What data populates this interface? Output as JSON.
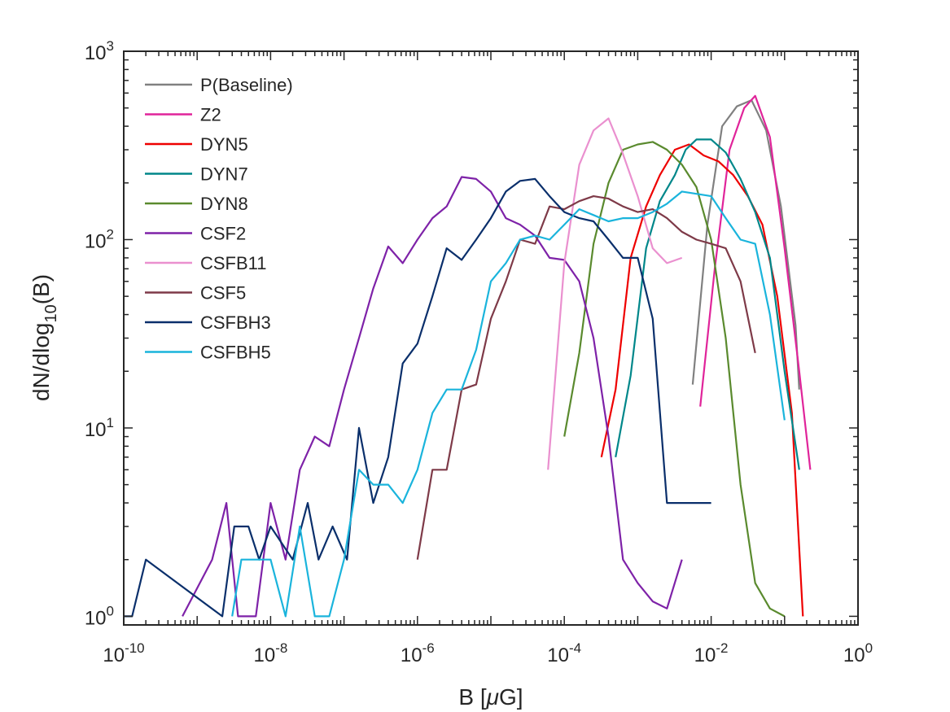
{
  "chart_data": {
    "type": "line",
    "xscale": "log",
    "yscale": "log",
    "xlim": [
      1e-10,
      1
    ],
    "ylim": [
      0.9,
      1000
    ],
    "grid": false,
    "legend_position": "top-left",
    "xlabel_parts": [
      "B [",
      "μ",
      "G]"
    ],
    "ylabel_parts": [
      "dN/dlog",
      "10",
      "(B)"
    ],
    "x_ticks": [
      {
        "value": 1e-10,
        "base": "10",
        "exp": "-10"
      },
      {
        "value": 1e-08,
        "base": "10",
        "exp": "-8"
      },
      {
        "value": 1e-06,
        "base": "10",
        "exp": "-6"
      },
      {
        "value": 0.0001,
        "base": "10",
        "exp": "-4"
      },
      {
        "value": 0.01,
        "base": "10",
        "exp": "-2"
      },
      {
        "value": 1,
        "base": "10",
        "exp": "0"
      }
    ],
    "y_ticks": [
      {
        "value": 1,
        "base": "10",
        "exp": "0"
      },
      {
        "value": 10,
        "base": "10",
        "exp": "1"
      },
      {
        "value": 100,
        "base": "10",
        "exp": "2"
      },
      {
        "value": 1000,
        "base": "10",
        "exp": "3"
      }
    ],
    "series": [
      {
        "name": "P(Baseline)",
        "color": "#808080",
        "x": [
          0.0056,
          0.0089,
          0.0141,
          0.0224,
          0.0355,
          0.0562,
          0.0891,
          0.1413,
          0.1585
        ],
        "y": [
          17,
          120,
          400,
          510,
          550,
          380,
          150,
          35,
          16
        ]
      },
      {
        "name": "Z2",
        "color": "#e0249a",
        "x": [
          0.0071,
          0.0112,
          0.0178,
          0.0282,
          0.0398,
          0.0631,
          0.1,
          0.1585,
          0.2239
        ],
        "y": [
          13,
          70,
          300,
          500,
          580,
          350,
          90,
          20,
          6
        ]
      },
      {
        "name": "DYN5",
        "color": "#ee0000",
        "x": [
          0.00032,
          0.0005,
          0.0008,
          0.0013,
          0.002,
          0.0032,
          0.005,
          0.0079,
          0.0126,
          0.02,
          0.0316,
          0.05,
          0.0794,
          0.1259,
          0.1778
        ],
        "y": [
          7,
          16,
          80,
          150,
          220,
          300,
          320,
          280,
          260,
          220,
          170,
          120,
          50,
          12,
          1
        ]
      },
      {
        "name": "DYN7",
        "color": "#00878a",
        "x": [
          0.0005,
          0.0008,
          0.0013,
          0.002,
          0.0032,
          0.0045,
          0.0063,
          0.01,
          0.0158,
          0.0251,
          0.0398,
          0.0631,
          0.1,
          0.1585
        ],
        "y": [
          7,
          19,
          90,
          160,
          220,
          300,
          340,
          340,
          290,
          210,
          140,
          80,
          20,
          6
        ]
      },
      {
        "name": "DYN8",
        "color": "#5a8a2e",
        "x": [
          0.0001,
          0.00016,
          0.00025,
          0.0004,
          0.00063,
          0.001,
          0.0016,
          0.0025,
          0.004,
          0.0063,
          0.01,
          0.0158,
          0.0251,
          0.0398,
          0.0631,
          0.1
        ],
        "y": [
          9,
          25,
          95,
          200,
          300,
          320,
          330,
          300,
          250,
          190,
          100,
          30,
          5,
          1.5,
          1.1,
          1
        ]
      },
      {
        "name": "CSF2",
        "color": "#7e22a8",
        "x": [
          6.3e-10,
          1.6e-09,
          2.5e-09,
          3.6e-09,
          6.3e-09,
          1e-08,
          1.6e-08,
          2.5e-08,
          4e-08,
          6.3e-08,
          1e-07,
          1.6e-07,
          2.5e-07,
          4e-07,
          6.3e-07,
          1e-06,
          1.6e-06,
          2.5e-06,
          4e-06,
          6.3e-06,
          1e-05,
          1.6e-05,
          2.5e-05,
          4e-05,
          6.3e-05,
          0.0001,
          0.00016,
          0.00025,
          0.0004,
          0.00063,
          0.001,
          0.0016,
          0.0025,
          0.004
        ],
        "y": [
          1,
          2,
          4,
          1,
          1,
          4,
          2,
          6,
          9,
          8,
          16,
          30,
          55,
          92,
          75,
          100,
          130,
          150,
          215,
          210,
          180,
          130,
          120,
          105,
          80,
          78,
          60,
          30,
          9,
          2,
          1.5,
          1.2,
          1.1,
          2
        ]
      },
      {
        "name": "CSFB11",
        "color": "#ea90cf",
        "x": [
          6e-05,
          0.0001,
          0.00016,
          0.00025,
          0.0004,
          0.0006,
          0.001,
          0.0016,
          0.0025,
          0.004
        ],
        "y": [
          6,
          75,
          250,
          380,
          440,
          300,
          170,
          90,
          75,
          80
        ]
      },
      {
        "name": "CSF5",
        "color": "#7e3a48",
        "x": [
          1e-06,
          1.6e-06,
          2.5e-06,
          4e-06,
          6.3e-06,
          1e-05,
          1.6e-05,
          2.5e-05,
          4e-05,
          6.3e-05,
          0.0001,
          0.00016,
          0.00025,
          0.0004,
          0.00063,
          0.001,
          0.0016,
          0.0025,
          0.004,
          0.0063,
          0.01,
          0.0158,
          0.0251,
          0.0398
        ],
        "y": [
          2,
          6,
          6,
          16,
          17,
          38,
          60,
          100,
          95,
          150,
          145,
          160,
          170,
          165,
          150,
          140,
          145,
          130,
          110,
          100,
          95,
          90,
          60,
          25
        ]
      },
      {
        "name": "CSFBH3",
        "color": "#0a2f6b",
        "x": [
          1e-10,
          1.3e-10,
          2e-10,
          2.2e-09,
          3.2e-09,
          5e-09,
          7e-09,
          1e-08,
          2e-08,
          3.2e-08,
          4.5e-08,
          7e-08,
          1.1e-07,
          1.6e-07,
          2.5e-07,
          4e-07,
          6.3e-07,
          1e-06,
          1.6e-06,
          2.5e-06,
          4e-06,
          6.3e-06,
          1e-05,
          1.6e-05,
          2.5e-05,
          4e-05,
          6.3e-05,
          0.0001,
          0.00016,
          0.00025,
          0.0004,
          0.00063,
          0.001,
          0.0016,
          0.0025,
          0.004,
          0.0063,
          0.01
        ],
        "y": [
          1,
          1,
          2,
          1,
          3,
          3,
          2,
          3,
          2,
          4,
          2,
          3,
          2,
          10,
          4,
          7,
          22,
          28,
          50,
          90,
          78,
          100,
          130,
          180,
          205,
          210,
          170,
          140,
          130,
          125,
          100,
          80,
          80,
          38,
          4,
          4,
          4,
          4
        ]
      },
      {
        "name": "CSFBH5",
        "color": "#1ab4dc",
        "x": [
          3e-09,
          4e-09,
          6.3e-09,
          1e-08,
          1.6e-08,
          2.5e-08,
          4e-08,
          6.3e-08,
          1e-07,
          1.6e-07,
          2.5e-07,
          4e-07,
          6.3e-07,
          1e-06,
          1.6e-06,
          2.5e-06,
          4e-06,
          6.3e-06,
          1e-05,
          1.6e-05,
          2.5e-05,
          4e-05,
          6.3e-05,
          0.0001,
          0.00016,
          0.00025,
          0.0004,
          0.00063,
          0.001,
          0.0016,
          0.0025,
          0.004,
          0.0063,
          0.01,
          0.0158,
          0.0251,
          0.0398,
          0.0631,
          0.1
        ],
        "y": [
          1,
          2,
          2,
          2,
          1,
          3,
          1,
          1,
          2,
          6,
          5,
          5,
          4,
          6,
          12,
          16,
          16,
          26,
          60,
          75,
          100,
          105,
          100,
          120,
          145,
          135,
          125,
          130,
          130,
          140,
          155,
          180,
          175,
          170,
          130,
          100,
          95,
          40,
          11
        ]
      }
    ]
  }
}
